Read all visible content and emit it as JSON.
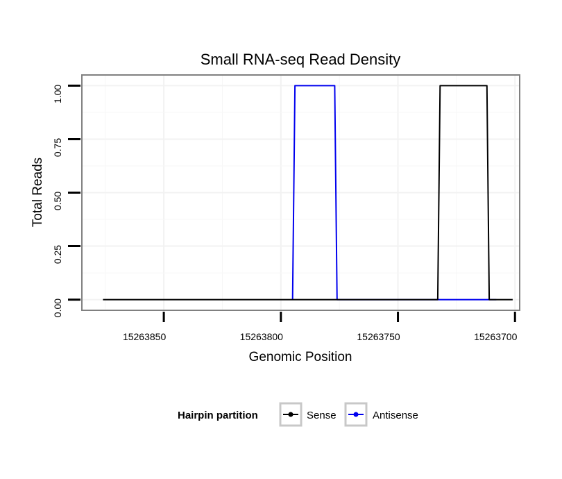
{
  "chart_data": {
    "type": "line",
    "title": "Small RNA-seq Read Density",
    "xlabel": "Genomic Position",
    "ylabel": "Total Reads",
    "x_reversed": true,
    "xlim": [
      15263885,
      15263698
    ],
    "ylim": [
      -0.05,
      1.05
    ],
    "x_ticks": [
      15263850,
      15263800,
      15263750,
      15263700
    ],
    "x_tick_labels": [
      "15263850",
      "15263800",
      "15263750",
      "15263700"
    ],
    "y_ticks": [
      0,
      0.25,
      0.5,
      0.75,
      1
    ],
    "y_tick_labels": [
      "0.00",
      "0.25",
      "0.50",
      "0.75",
      "1.00"
    ],
    "grid": true,
    "legend": {
      "title": "Hairpin partition",
      "position": "bottom",
      "entries": [
        "Sense",
        "Antisense"
      ]
    },
    "series": [
      {
        "name": "Antisense",
        "color": "#0000ee",
        "x": [
          15263795,
          15263794,
          15263777,
          15263776,
          15263733,
          15263708
        ],
        "y": [
          0,
          1,
          1,
          0,
          0,
          0
        ]
      },
      {
        "name": "Sense",
        "color": "#000000",
        "x": [
          15263876,
          15263733,
          15263732,
          15263712,
          15263711,
          15263701
        ],
        "y": [
          0,
          0,
          1,
          1,
          0,
          0
        ]
      }
    ]
  }
}
